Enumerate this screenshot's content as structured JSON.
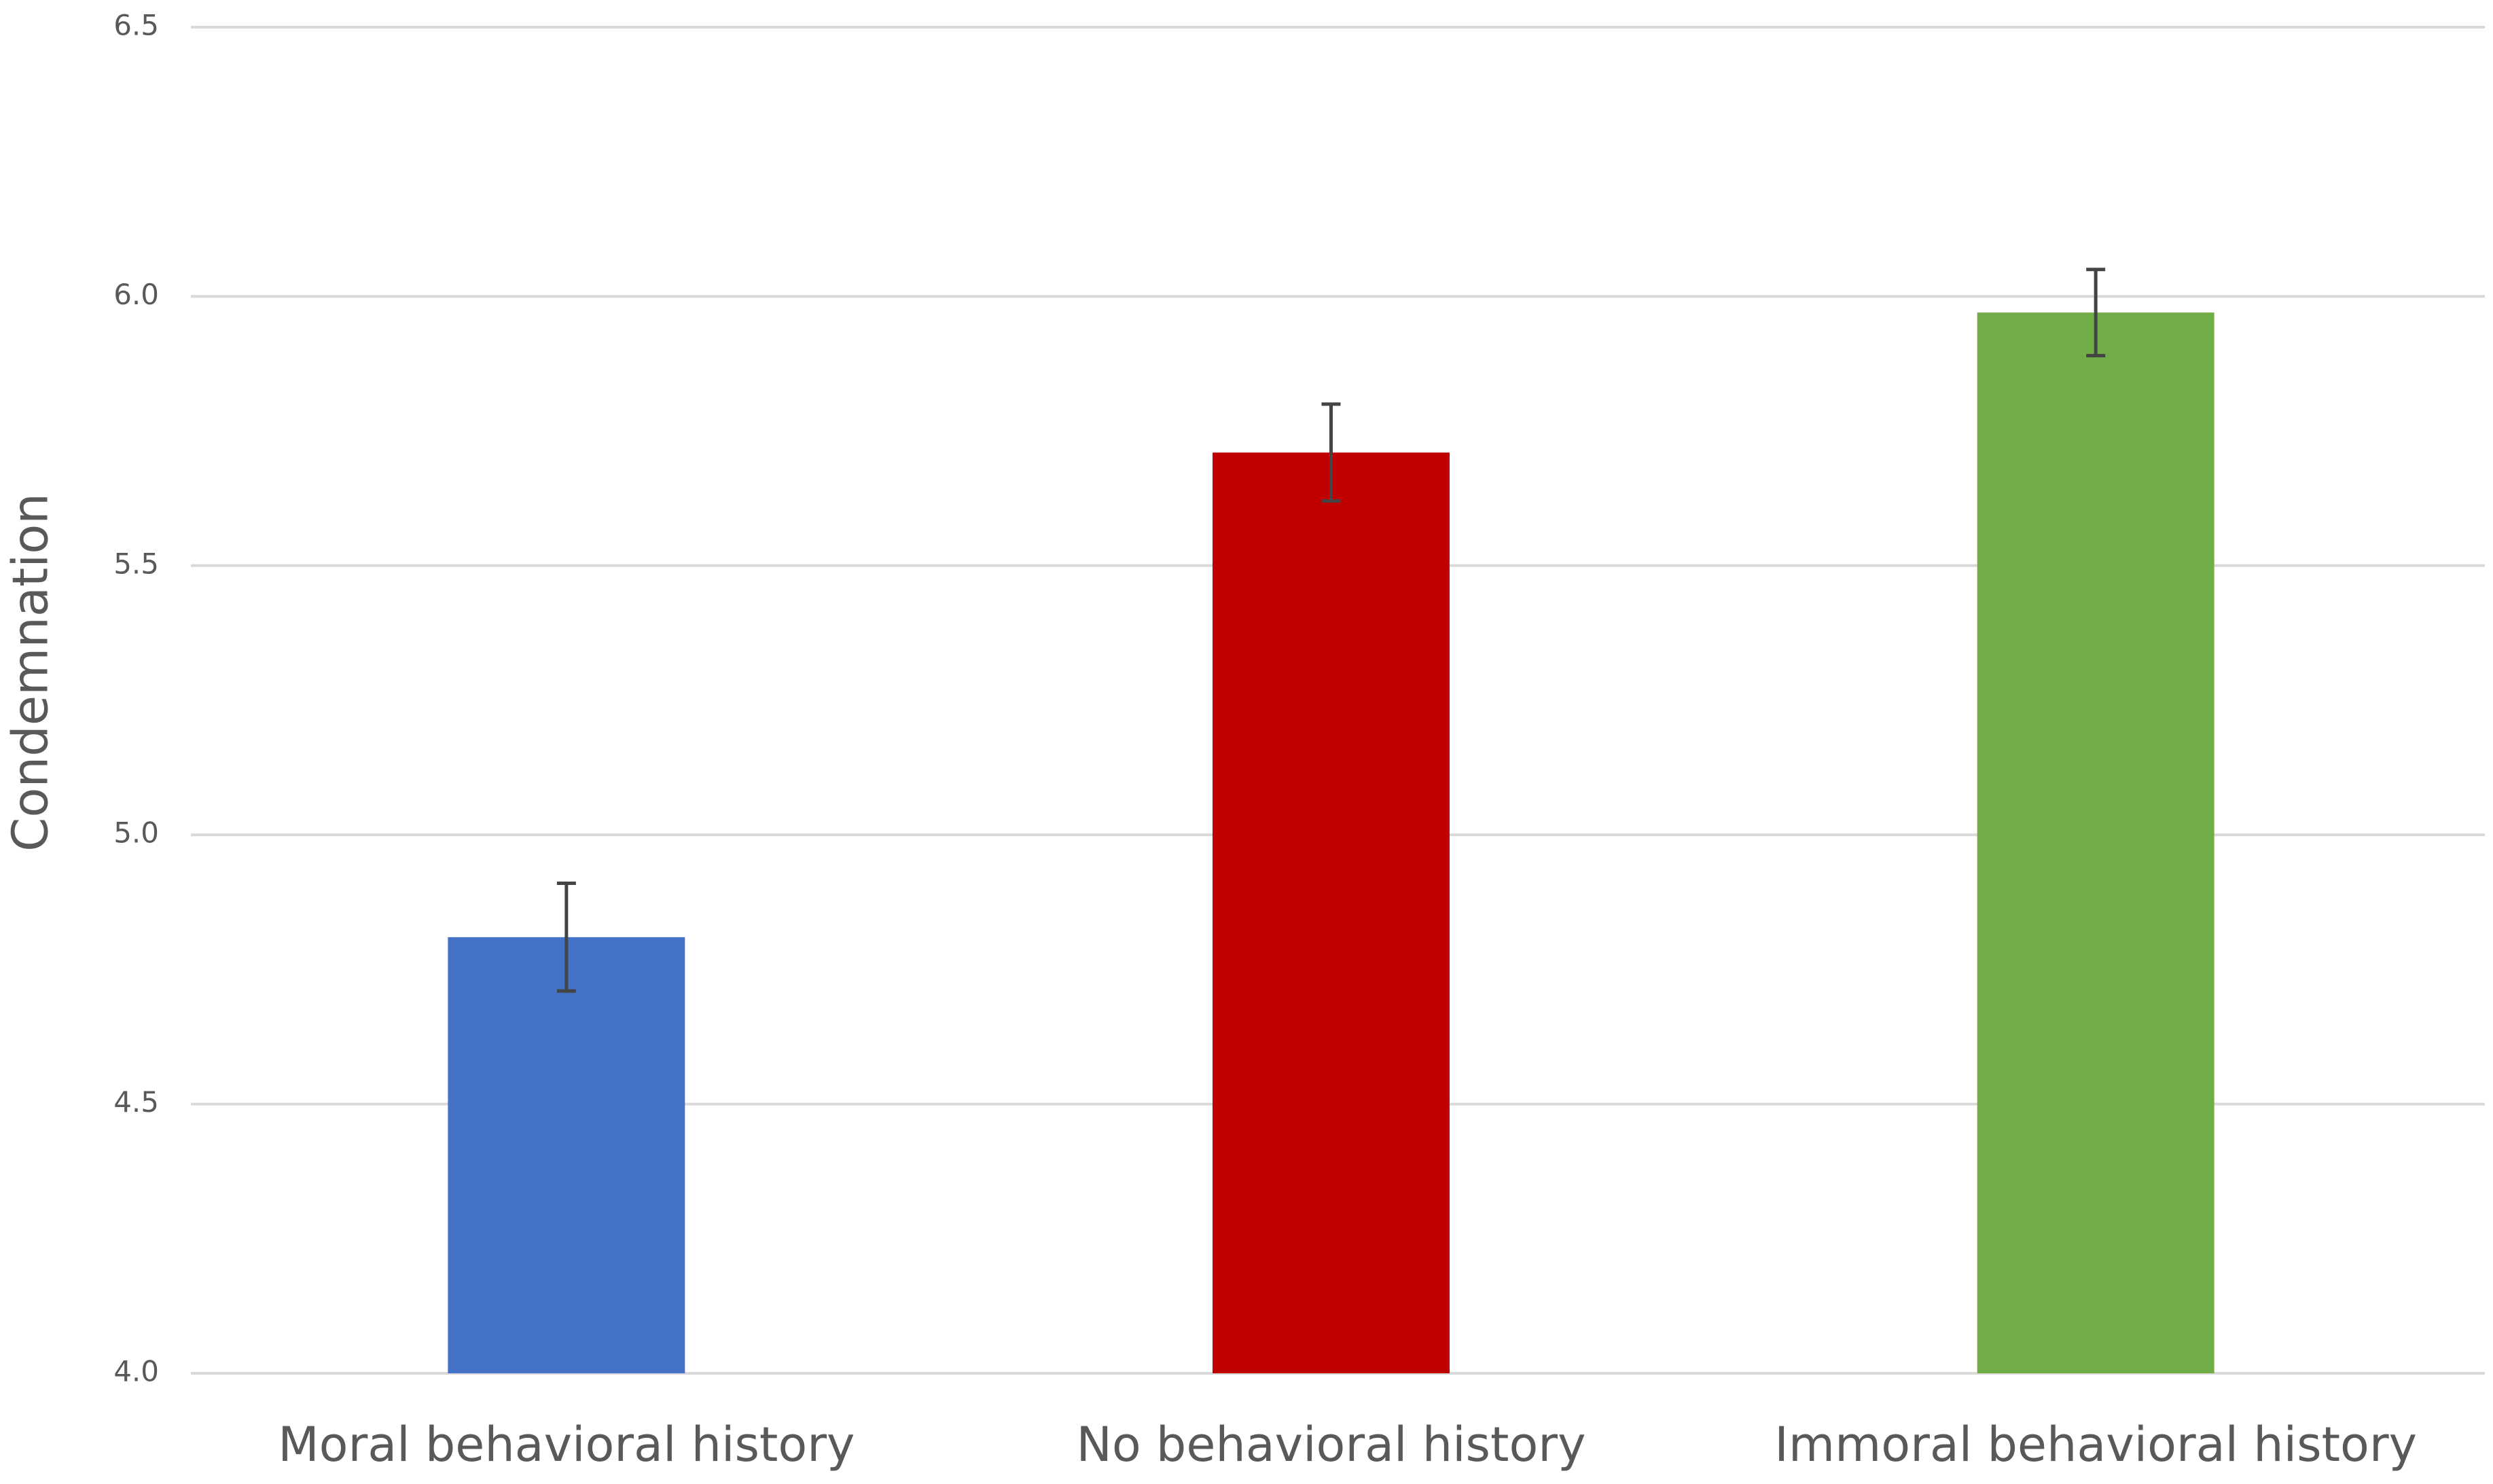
{
  "chart_data": {
    "type": "bar",
    "y_label": "Condemnation",
    "categories": [
      "Moral behavioral history",
      "No behavioral history",
      "Immoral behavioral history"
    ],
    "values": [
      4.81,
      5.71,
      5.97
    ],
    "errors": [
      0.1,
      0.09,
      0.08
    ],
    "colors": [
      "#4472c4",
      "#c00000",
      "#70ad47"
    ],
    "ylim": [
      4.0,
      6.5
    ],
    "yticks": [
      {
        "value": 4.0,
        "label": "4.0"
      },
      4.5,
      {
        "value": 5.0,
        "label": "5.0"
      },
      5.5,
      {
        "value": 6.0,
        "label": "6.0"
      },
      6.5
    ],
    "grid": true
  }
}
